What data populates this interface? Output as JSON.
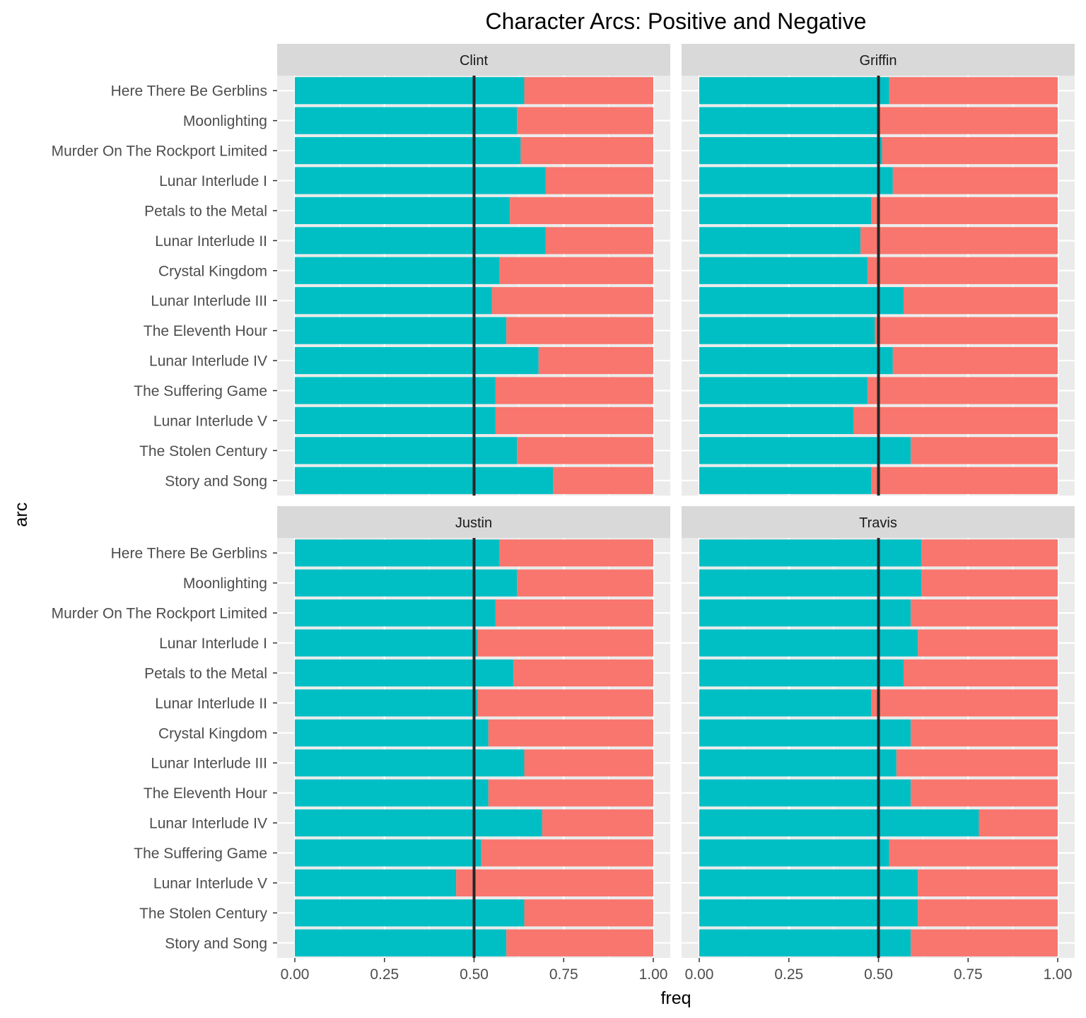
{
  "chart_data": {
    "type": "bar",
    "subtype": "stacked-horizontal-proportion-facets",
    "title": "Character Arcs: Positive and Negative",
    "xlabel": "freq",
    "ylabel": "arc",
    "xlim": [
      0,
      1
    ],
    "x_ticks": [
      "0.00",
      "0.25",
      "0.50",
      "0.75",
      "1.00"
    ],
    "x_tick_values": [
      0,
      0.25,
      0.5,
      0.75,
      1.0
    ],
    "reference_line": 0.5,
    "grid": true,
    "legend": "none",
    "colors": {
      "positive": "#00BFC4",
      "negative": "#F8766D",
      "panel_background": "#EBEBEB",
      "gridline": "#FFFFFF",
      "strip_background": "#D9D9D9",
      "reference_line": "#262626"
    },
    "categories": [
      "Here There Be Gerblins",
      "Moonlighting",
      "Murder On The Rockport Limited",
      "Lunar Interlude I",
      "Petals to the Metal",
      "Lunar Interlude II",
      "Crystal Kingdom",
      "Lunar Interlude III",
      "The Eleventh Hour",
      "Lunar Interlude IV",
      "The Suffering Game",
      "Lunar Interlude V",
      "The Stolen Century",
      "Story and Song"
    ],
    "facets": [
      {
        "name": "Clint",
        "positive": [
          0.64,
          0.62,
          0.63,
          0.7,
          0.6,
          0.7,
          0.57,
          0.55,
          0.59,
          0.68,
          0.56,
          0.56,
          0.62,
          0.72
        ]
      },
      {
        "name": "Griffin",
        "positive": [
          0.53,
          0.5,
          0.51,
          0.54,
          0.48,
          0.45,
          0.47,
          0.57,
          0.49,
          0.54,
          0.47,
          0.43,
          0.59,
          0.48
        ]
      },
      {
        "name": "Justin",
        "positive": [
          0.57,
          0.62,
          0.56,
          0.51,
          0.61,
          0.51,
          0.54,
          0.64,
          0.54,
          0.69,
          0.52,
          0.45,
          0.64,
          0.59
        ]
      },
      {
        "name": "Travis",
        "positive": [
          0.62,
          0.62,
          0.59,
          0.61,
          0.57,
          0.48,
          0.59,
          0.55,
          0.59,
          0.78,
          0.53,
          0.61,
          0.61,
          0.59
        ]
      }
    ]
  }
}
